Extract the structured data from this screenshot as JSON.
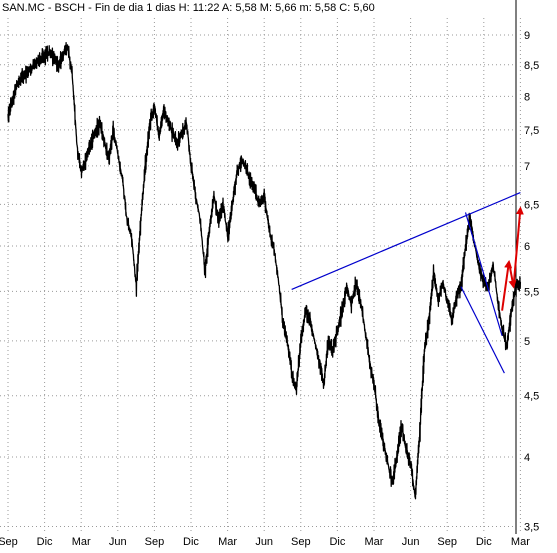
{
  "chart_data": {
    "type": "line",
    "title": "SAN.MC - BSCH - Fin de dia 1 dias  H: 11:22  A: 5,58  M: 5,66  m: 5,58  C: 5,60",
    "scale": "log",
    "grid": true,
    "y_axis_side": "right",
    "ylim": [
      3.45,
      9.3
    ],
    "y_ticks": [
      {
        "value": 9,
        "label": "9"
      },
      {
        "value": 8.5,
        "label": "8,5"
      },
      {
        "value": 8,
        "label": "8"
      },
      {
        "value": 7.5,
        "label": "7,5"
      },
      {
        "value": 7,
        "label": "7"
      },
      {
        "value": 6.5,
        "label": "6,5"
      },
      {
        "value": 6,
        "label": "6"
      },
      {
        "value": 5.5,
        "label": "5,5"
      },
      {
        "value": 5,
        "label": "5"
      },
      {
        "value": 4.5,
        "label": "4,5"
      },
      {
        "value": 4,
        "label": "4"
      },
      {
        "value": 3.5,
        "label": "3,5"
      }
    ],
    "x_ticks": [
      "Sep",
      "Dic",
      "Mar",
      "Jun",
      "Sep",
      "Dic",
      "Mar",
      "Jun",
      "Sep",
      "Dic",
      "Mar",
      "Jun",
      "Sep",
      "Dic",
      "Mar"
    ],
    "price_series": {
      "name": "",
      "points": [
        [
          0,
          7.7
        ],
        [
          2,
          8.2
        ],
        [
          5,
          8.45
        ],
        [
          7,
          8.6
        ],
        [
          9,
          8.7
        ],
        [
          11,
          8.5
        ],
        [
          13,
          8.8
        ],
        [
          14,
          8.35
        ],
        [
          15,
          7.3
        ],
        [
          16,
          6.9
        ],
        [
          18,
          7.3
        ],
        [
          20,
          7.6
        ],
        [
          22,
          7.1
        ],
        [
          23,
          7.5
        ],
        [
          25,
          6.8
        ],
        [
          26,
          6.3
        ],
        [
          27,
          6.1
        ],
        [
          28,
          5.55
        ],
        [
          29,
          6.3
        ],
        [
          30,
          7.0
        ],
        [
          31,
          7.6
        ],
        [
          32,
          7.85
        ],
        [
          33,
          7.4
        ],
        [
          34,
          7.8
        ],
        [
          35,
          7.6
        ],
        [
          37,
          7.3
        ],
        [
          39,
          7.6
        ],
        [
          40,
          7.0
        ],
        [
          41,
          6.6
        ],
        [
          42,
          6.3
        ],
        [
          43,
          5.7
        ],
        [
          44,
          6.2
        ],
        [
          45,
          6.6
        ],
        [
          46,
          6.3
        ],
        [
          47,
          6.5
        ],
        [
          48,
          6.1
        ],
        [
          50,
          6.9
        ],
        [
          51,
          7.1
        ],
        [
          53,
          6.8
        ],
        [
          55,
          6.5
        ],
        [
          56,
          6.6
        ],
        [
          57,
          6.2
        ],
        [
          58,
          6.0
        ],
        [
          59,
          5.65
        ],
        [
          60,
          5.2
        ],
        [
          61,
          5.0
        ],
        [
          62,
          4.7
        ],
        [
          63,
          4.55
        ],
        [
          64,
          5.0
        ],
        [
          65,
          5.3
        ],
        [
          66,
          5.2
        ],
        [
          67,
          5.0
        ],
        [
          68,
          4.8
        ],
        [
          69,
          4.6
        ],
        [
          70,
          5.0
        ],
        [
          71,
          4.9
        ],
        [
          72,
          5.1
        ],
        [
          73,
          5.3
        ],
        [
          74,
          5.55
        ],
        [
          75,
          5.35
        ],
        [
          76,
          5.6
        ],
        [
          77,
          5.4
        ],
        [
          78,
          5.1
        ],
        [
          79,
          4.8
        ],
        [
          80,
          4.6
        ],
        [
          81,
          4.3
        ],
        [
          82,
          4.1
        ],
        [
          83,
          3.95
        ],
        [
          84,
          3.8
        ],
        [
          85,
          4.0
        ],
        [
          86,
          4.25
        ],
        [
          87,
          4.05
        ],
        [
          88,
          3.95
        ],
        [
          89,
          3.7
        ],
        [
          90,
          4.2
        ],
        [
          91,
          4.9
        ],
        [
          92,
          5.2
        ],
        [
          93,
          5.7
        ],
        [
          94,
          5.4
        ],
        [
          95,
          5.6
        ],
        [
          96,
          5.4
        ],
        [
          97,
          5.2
        ],
        [
          98,
          5.45
        ],
        [
          99,
          5.55
        ],
        [
          100,
          6.0
        ],
        [
          101,
          6.35
        ],
        [
          102,
          6.0
        ],
        [
          103,
          5.75
        ],
        [
          104,
          5.6
        ],
        [
          105,
          5.55
        ],
        [
          106,
          5.8
        ],
        [
          107,
          5.4
        ],
        [
          108,
          5.1
        ],
        [
          109,
          4.95
        ],
        [
          110,
          5.3
        ],
        [
          111,
          5.55
        ],
        [
          112,
          5.6
        ]
      ]
    },
    "trendlines": [
      {
        "color": "#0000cc",
        "from": [
          62,
          5.52
        ],
        "to": [
          112,
          6.65
        ]
      },
      {
        "color": "#0000cc",
        "from": [
          100,
          6.4
        ],
        "to": [
          108,
          5.05
        ]
      },
      {
        "color": "#0000cc",
        "from": [
          99,
          5.55
        ],
        "to": [
          108.5,
          4.7
        ]
      }
    ],
    "projections": [
      {
        "color": "#dd0000",
        "points": [
          [
            108,
            5.3
          ],
          [
            109.5,
            5.82
          ],
          [
            110.5,
            5.55
          ],
          [
            112,
            6.45
          ]
        ]
      }
    ]
  }
}
